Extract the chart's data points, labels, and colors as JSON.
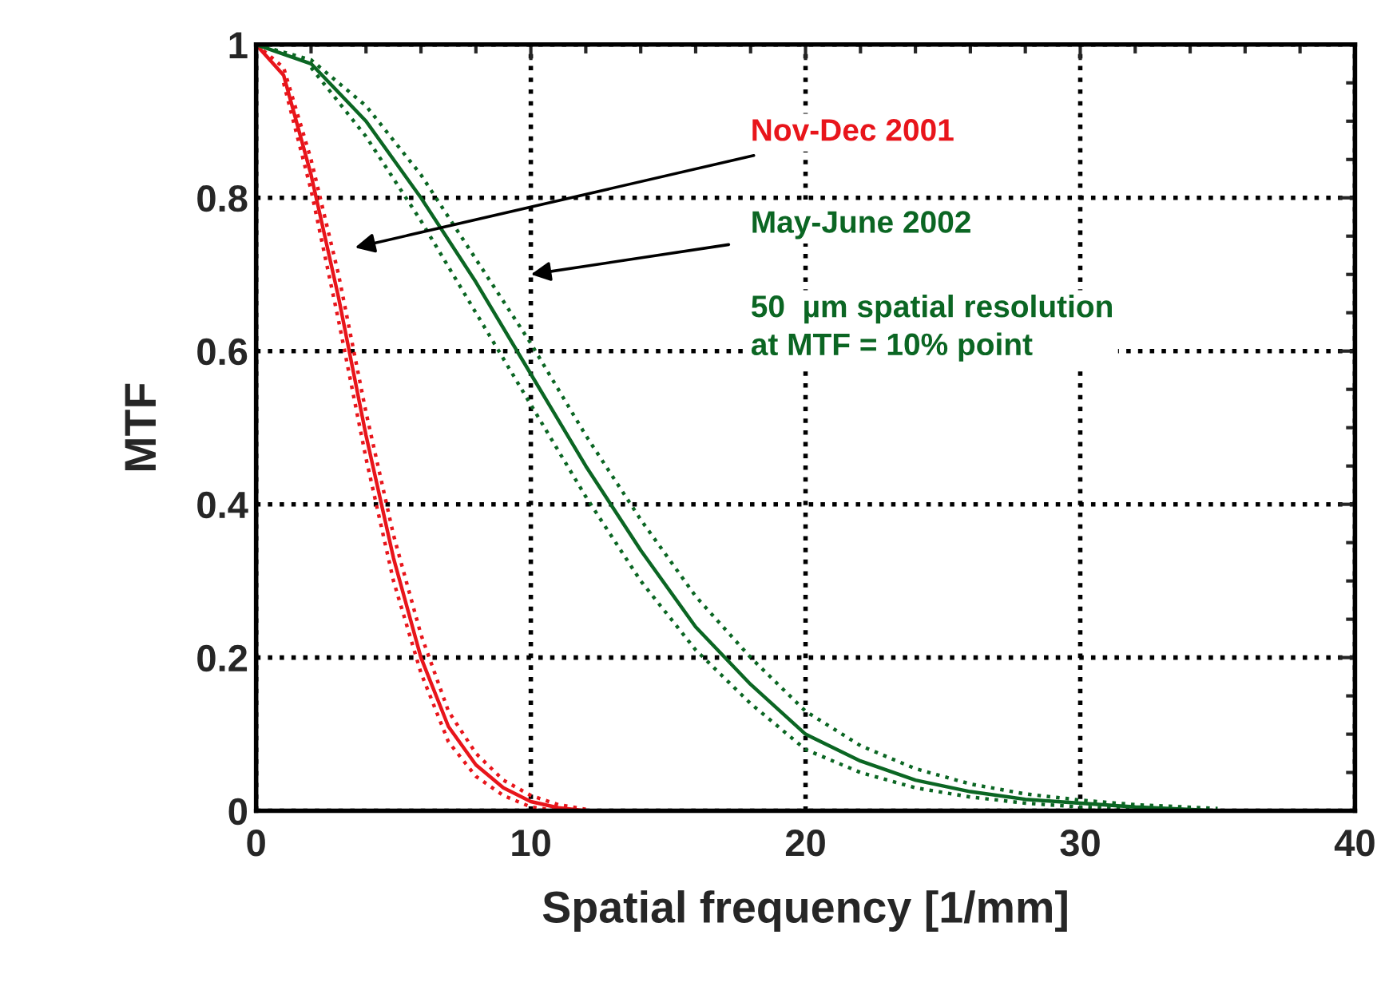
{
  "chart_data": {
    "type": "line",
    "xlabel": "Spatial frequency [1/mm]",
    "ylabel": "MTF",
    "xlim": [
      0,
      40
    ],
    "ylim": [
      0,
      1
    ],
    "xticks": [
      0,
      10,
      20,
      30,
      40
    ],
    "yticks": [
      0,
      0.2,
      0.4,
      0.6,
      0.8,
      1
    ],
    "grid": true,
    "line_style": "solid",
    "marker": "none",
    "series": [
      {
        "color": "#e8151b",
        "x": [
          0,
          1,
          2,
          3,
          4,
          5,
          6,
          7,
          8,
          9,
          10,
          11,
          12
        ],
        "values": [
          1,
          0.96,
          0.83,
          0.67,
          0.49,
          0.33,
          0.2,
          0.11,
          0.06,
          0.03,
          0.012,
          0.004,
          0
        ]
      },
      {
        "color": "#e8151b",
        "line_style": "dotted",
        "x": [
          1,
          2,
          3,
          4,
          5,
          6,
          7,
          8,
          9,
          10,
          11
        ],
        "values": [
          0.95,
          0.81,
          0.64,
          0.46,
          0.3,
          0.18,
          0.09,
          0.045,
          0.02,
          0.005,
          0
        ]
      },
      {
        "color": "#e8151b",
        "line_style": "dotted",
        "x": [
          0,
          1,
          2,
          3,
          4,
          5,
          6,
          7,
          8,
          9,
          10,
          11,
          12
        ],
        "values": [
          1,
          0.97,
          0.85,
          0.7,
          0.52,
          0.36,
          0.23,
          0.13,
          0.075,
          0.04,
          0.02,
          0.008,
          0.002
        ]
      },
      {
        "color": "#0b6623",
        "x": [
          0,
          2,
          4,
          6,
          8,
          10,
          12,
          14,
          16,
          18,
          20,
          22,
          24,
          26,
          28,
          30,
          32,
          35
        ],
        "values": [
          1,
          0.975,
          0.9,
          0.8,
          0.69,
          0.57,
          0.45,
          0.34,
          0.24,
          0.165,
          0.1,
          0.065,
          0.04,
          0.025,
          0.015,
          0.01,
          0.005,
          0
        ]
      },
      {
        "color": "#0b6623",
        "line_style": "dotted",
        "x": [
          2,
          4,
          6,
          8,
          10,
          12,
          14,
          16,
          18,
          20,
          22,
          24,
          26,
          28,
          30,
          32
        ],
        "values": [
          0.97,
          0.88,
          0.77,
          0.65,
          0.53,
          0.41,
          0.3,
          0.21,
          0.14,
          0.08,
          0.05,
          0.03,
          0.018,
          0.01,
          0.005,
          0.002
        ]
      },
      {
        "color": "#0b6623",
        "line_style": "dotted",
        "x": [
          0,
          2,
          4,
          6,
          8,
          10,
          12,
          14,
          16,
          18,
          20,
          22,
          24,
          26,
          28,
          30,
          32,
          35
        ],
        "values": [
          1,
          0.98,
          0.92,
          0.83,
          0.72,
          0.61,
          0.49,
          0.38,
          0.28,
          0.2,
          0.13,
          0.085,
          0.055,
          0.035,
          0.022,
          0.014,
          0.008,
          0.003
        ]
      }
    ],
    "annotations": [
      "Nov-Dec 2001",
      "May-June 2002",
      "50  µm spatial resolution\nat MTF = 10% point"
    ]
  }
}
